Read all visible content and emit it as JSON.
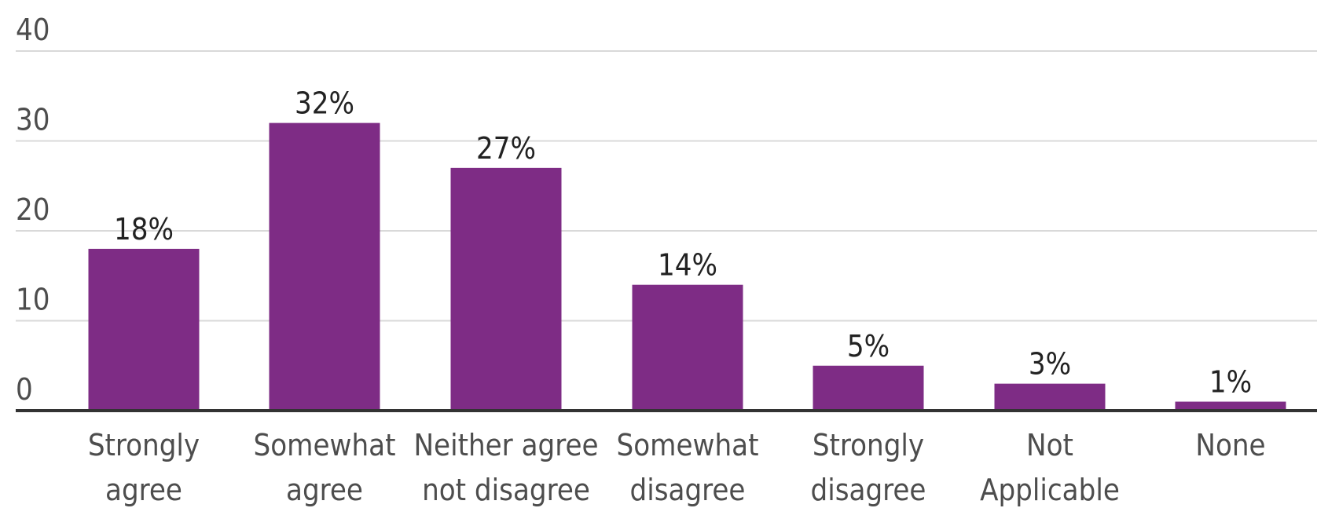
{
  "chart_data": {
    "type": "bar",
    "title": "",
    "xlabel": "",
    "ylabel": "",
    "categories": [
      [
        "Strongly",
        "agree"
      ],
      [
        "Somewhat",
        "agree"
      ],
      [
        "Neither agree",
        "not disagree"
      ],
      [
        "Somewhat",
        "disagree"
      ],
      [
        "Strongly",
        "disagree"
      ],
      [
        "Not",
        "Applicable"
      ],
      [
        "None"
      ]
    ],
    "values": [
      18,
      32,
      27,
      14,
      5,
      3,
      1
    ],
    "value_labels": [
      "18%",
      "32%",
      "27%",
      "14%",
      "5%",
      "3%",
      "1%"
    ],
    "ylim": [
      0,
      40
    ],
    "yticks": [
      0,
      10,
      20,
      30,
      40
    ],
    "grid": true,
    "bar_color": "#7e2c85",
    "axis_color": "#333333",
    "grid_color": "#d9d9d9"
  }
}
